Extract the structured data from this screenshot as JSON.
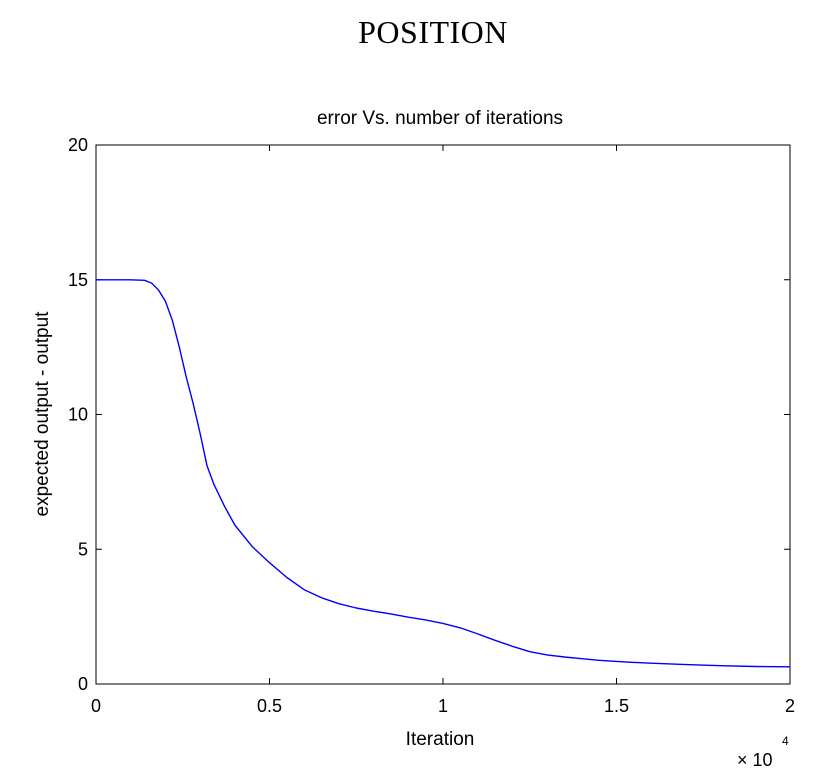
{
  "page": {
    "heading": "POSITION"
  },
  "chart_data": {
    "type": "line",
    "title": "error Vs. number of iterations",
    "xlabel": "Iteration",
    "ylabel": "expected output - output",
    "x_multiplier_label": "× 10",
    "x_multiplier_exponent": "4",
    "xlim": [
      0,
      2
    ],
    "ylim": [
      0,
      20
    ],
    "xticks": [
      0,
      0.5,
      1,
      1.5,
      2
    ],
    "xtick_labels": [
      "0",
      "0.5",
      "1",
      "1.5",
      "2"
    ],
    "yticks": [
      0,
      5,
      10,
      15,
      20
    ],
    "ytick_labels": [
      "0",
      "5",
      "10",
      "15",
      "20"
    ],
    "grid": false,
    "line_color": "#0000ff",
    "series": [
      {
        "x": [
          0,
          0.05,
          0.1,
          0.14,
          0.16,
          0.18,
          0.2,
          0.22,
          0.24,
          0.26,
          0.28,
          0.3,
          0.32,
          0.34,
          0.37,
          0.4,
          0.45,
          0.5,
          0.55,
          0.6,
          0.65,
          0.7,
          0.75,
          0.8,
          0.85,
          0.9,
          0.95,
          1.0,
          1.05,
          1.1,
          1.15,
          1.2,
          1.25,
          1.3,
          1.35,
          1.4,
          1.45,
          1.5,
          1.55,
          1.6,
          1.7,
          1.8,
          1.9,
          2.0
        ],
        "y": [
          15.0,
          15.0,
          15.0,
          14.98,
          14.88,
          14.62,
          14.2,
          13.5,
          12.5,
          11.4,
          10.4,
          9.3,
          8.1,
          7.4,
          6.6,
          5.9,
          5.1,
          4.5,
          3.95,
          3.5,
          3.2,
          2.98,
          2.82,
          2.7,
          2.6,
          2.48,
          2.38,
          2.25,
          2.08,
          1.86,
          1.62,
          1.4,
          1.2,
          1.08,
          1.0,
          0.94,
          0.88,
          0.84,
          0.8,
          0.77,
          0.72,
          0.68,
          0.65,
          0.64
        ]
      }
    ]
  }
}
